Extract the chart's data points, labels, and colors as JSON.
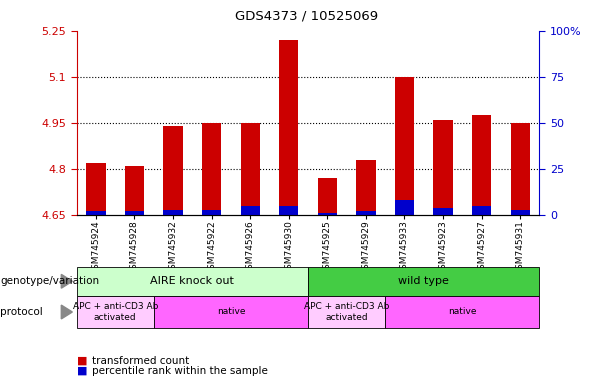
{
  "title": "GDS4373 / 10525069",
  "samples": [
    "GSM745924",
    "GSM745928",
    "GSM745932",
    "GSM745922",
    "GSM745926",
    "GSM745930",
    "GSM745925",
    "GSM745929",
    "GSM745933",
    "GSM745923",
    "GSM745927",
    "GSM745931"
  ],
  "transformed_counts": [
    4.82,
    4.81,
    4.94,
    4.95,
    4.95,
    5.22,
    4.77,
    4.83,
    5.1,
    4.96,
    4.975,
    4.95
  ],
  "percentile_ranks": [
    2,
    2,
    3,
    3,
    5,
    5,
    1,
    2,
    8,
    4,
    5,
    3
  ],
  "bar_bottom": 4.65,
  "ylim_left": [
    4.65,
    5.25
  ],
  "ylim_right": [
    0,
    100
  ],
  "yticks_left": [
    4.65,
    4.8,
    4.95,
    5.1,
    5.25
  ],
  "yticks_right": [
    0,
    25,
    50,
    75,
    100
  ],
  "bar_color": "#cc0000",
  "percentile_color": "#0000cc",
  "genotype_groups": [
    {
      "label": "AIRE knock out",
      "start": 0,
      "end": 6,
      "color": "#ccffcc"
    },
    {
      "label": "wild type",
      "start": 6,
      "end": 12,
      "color": "#44cc44"
    }
  ],
  "protocol_groups": [
    {
      "label": "APC + anti-CD3 Ab\nactivated",
      "start": 0,
      "end": 2,
      "color": "#ffccff"
    },
    {
      "label": "native",
      "start": 2,
      "end": 6,
      "color": "#ff66ff"
    },
    {
      "label": "APC + anti-CD3 Ab\nactivated",
      "start": 6,
      "end": 8,
      "color": "#ffccff"
    },
    {
      "label": "native",
      "start": 8,
      "end": 12,
      "color": "#ff66ff"
    }
  ],
  "left_label_color": "#cc0000",
  "right_label_color": "#0000cc"
}
